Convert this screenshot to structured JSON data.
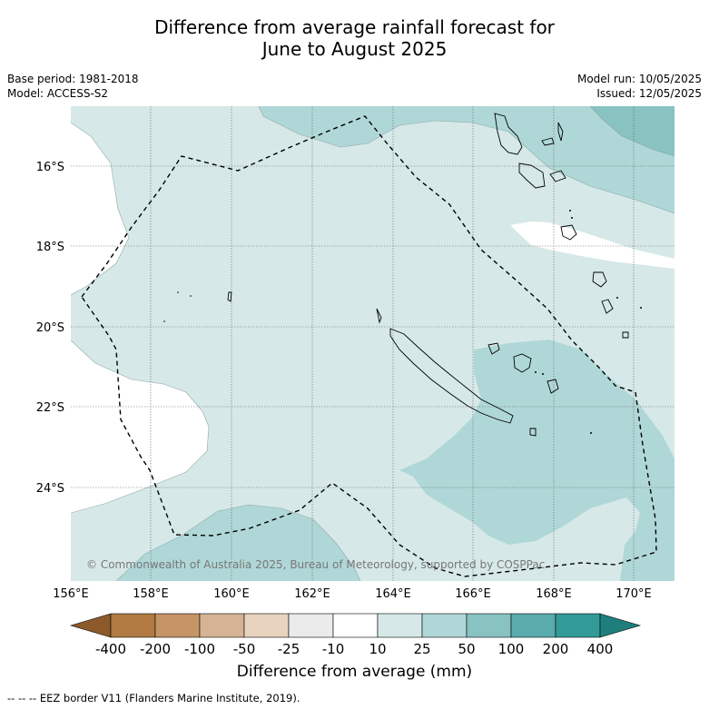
{
  "title_line1": "Difference from average rainfall forecast for",
  "title_line2": "June to August 2025",
  "base_period": "Base period: 1981-2018",
  "model": "Model: ACCESS-S2",
  "model_run": "Model run: 10/05/2025",
  "issued": "Issued: 12/05/2025",
  "copyright": "© Commonwealth of Australia 2025, Bureau of Meteorology, supported by COSPPac",
  "lat_labels": [
    "16°S",
    "18°S",
    "20°S",
    "22°S",
    "24°S"
  ],
  "lon_labels": [
    "156°E",
    "158°E",
    "160°E",
    "162°E",
    "164°E",
    "166°E",
    "168°E",
    "170°E"
  ],
  "colorbar": {
    "ticks": [
      "-400",
      "-200",
      "-100",
      "-50",
      "-25",
      "-10",
      "10",
      "25",
      "50",
      "100",
      "200",
      "400"
    ],
    "colors": [
      "#8c5a2a",
      "#b07a42",
      "#c69566",
      "#d5b394",
      "#e8d3bf",
      "#ebebeb",
      "#ffffff",
      "#d6e9e8",
      "#b0d7d7",
      "#88c2c1",
      "#5aabab",
      "#339b97",
      "#1f7e7b"
    ],
    "label": "Difference from average (mm)"
  },
  "legend_footer": "--  --  -- EEZ border V11 (Flanders Marine Institute, 2019)."
}
